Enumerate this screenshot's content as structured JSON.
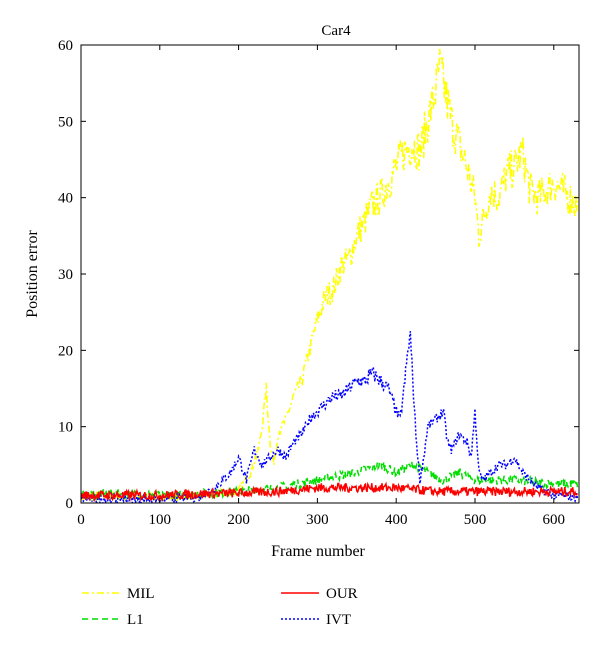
{
  "chart_data": {
    "type": "line",
    "title": "Car4",
    "xlabel": "Frame number",
    "ylabel": "Position error",
    "xlim": [
      0,
      632
    ],
    "ylim": [
      0,
      60
    ],
    "xticks": [
      0,
      100,
      200,
      300,
      400,
      500,
      600
    ],
    "yticks": [
      0,
      10,
      20,
      30,
      40,
      50,
      60
    ],
    "legend_position": "below plot, two columns",
    "grid": false,
    "series": [
      {
        "name": "MIL",
        "color": "#ffff00",
        "style": "dashdot",
        "points": [
          [
            0,
            0.8
          ],
          [
            50,
            0.9
          ],
          [
            100,
            0.8
          ],
          [
            150,
            0.9
          ],
          [
            200,
            1.5
          ],
          [
            215,
            4
          ],
          [
            225,
            7
          ],
          [
            230,
            10
          ],
          [
            235,
            15
          ],
          [
            240,
            8
          ],
          [
            245,
            5
          ],
          [
            250,
            9
          ],
          [
            260,
            11
          ],
          [
            270,
            14
          ],
          [
            280,
            16
          ],
          [
            290,
            20
          ],
          [
            300,
            24
          ],
          [
            310,
            27
          ],
          [
            320,
            28
          ],
          [
            330,
            31
          ],
          [
            340,
            32
          ],
          [
            350,
            35
          ],
          [
            360,
            37
          ],
          [
            370,
            39
          ],
          [
            380,
            40
          ],
          [
            390,
            42
          ],
          [
            400,
            44
          ],
          [
            410,
            46
          ],
          [
            420,
            47
          ],
          [
            430,
            46
          ],
          [
            440,
            50
          ],
          [
            450,
            54
          ],
          [
            455,
            57
          ],
          [
            460,
            55
          ],
          [
            470,
            50
          ],
          [
            480,
            47
          ],
          [
            490,
            44
          ],
          [
            500,
            40
          ],
          [
            505,
            35
          ],
          [
            510,
            37
          ],
          [
            520,
            41
          ],
          [
            530,
            40
          ],
          [
            540,
            43
          ],
          [
            550,
            44
          ],
          [
            560,
            46
          ],
          [
            570,
            41
          ],
          [
            580,
            40
          ],
          [
            590,
            41
          ],
          [
            600,
            42
          ],
          [
            610,
            41
          ],
          [
            620,
            40
          ],
          [
            630,
            39
          ]
        ]
      },
      {
        "name": "L1",
        "color": "#00dd00",
        "style": "dashed",
        "points": [
          [
            0,
            1
          ],
          [
            50,
            1.2
          ],
          [
            100,
            1
          ],
          [
            150,
            1.2
          ],
          [
            200,
            1.5
          ],
          [
            250,
            2
          ],
          [
            300,
            3
          ],
          [
            350,
            4
          ],
          [
            380,
            5
          ],
          [
            400,
            4
          ],
          [
            420,
            5
          ],
          [
            440,
            4
          ],
          [
            460,
            3
          ],
          [
            480,
            4
          ],
          [
            500,
            3
          ],
          [
            550,
            3
          ],
          [
            600,
            2.5
          ],
          [
            630,
            2.5
          ]
        ]
      },
      {
        "name": "OUR",
        "color": "#ff0000",
        "style": "solid",
        "points": [
          [
            0,
            1
          ],
          [
            50,
            1
          ],
          [
            100,
            1
          ],
          [
            150,
            1.2
          ],
          [
            200,
            1.3
          ],
          [
            250,
            1.5
          ],
          [
            300,
            2
          ],
          [
            350,
            2
          ],
          [
            400,
            2
          ],
          [
            450,
            1.5
          ],
          [
            500,
            1.5
          ],
          [
            550,
            1.5
          ],
          [
            600,
            1.5
          ],
          [
            630,
            1.5
          ]
        ]
      },
      {
        "name": "IVT",
        "color": "#0000ff",
        "style": "dotted",
        "points": [
          [
            0,
            0.5
          ],
          [
            50,
            0.6
          ],
          [
            100,
            0.5
          ],
          [
            150,
            0.8
          ],
          [
            170,
            2
          ],
          [
            190,
            4
          ],
          [
            200,
            6
          ],
          [
            210,
            3
          ],
          [
            220,
            7
          ],
          [
            230,
            5
          ],
          [
            240,
            6
          ],
          [
            250,
            7
          ],
          [
            260,
            6
          ],
          [
            270,
            8
          ],
          [
            280,
            9
          ],
          [
            290,
            11
          ],
          [
            300,
            12
          ],
          [
            310,
            13
          ],
          [
            320,
            14
          ],
          [
            330,
            14
          ],
          [
            340,
            15
          ],
          [
            350,
            16
          ],
          [
            360,
            16
          ],
          [
            370,
            17
          ],
          [
            380,
            16
          ],
          [
            390,
            15
          ],
          [
            400,
            12
          ],
          [
            405,
            11
          ],
          [
            410,
            15
          ],
          [
            415,
            20
          ],
          [
            418,
            22
          ],
          [
            420,
            18
          ],
          [
            425,
            9
          ],
          [
            430,
            3
          ],
          [
            435,
            6
          ],
          [
            440,
            10
          ],
          [
            450,
            11
          ],
          [
            460,
            12
          ],
          [
            465,
            8
          ],
          [
            470,
            7
          ],
          [
            480,
            9
          ],
          [
            490,
            8
          ],
          [
            495,
            6
          ],
          [
            500,
            12
          ],
          [
            505,
            4
          ],
          [
            510,
            3
          ],
          [
            520,
            4
          ],
          [
            530,
            5
          ],
          [
            540,
            5
          ],
          [
            550,
            6
          ],
          [
            560,
            4
          ],
          [
            570,
            3
          ],
          [
            580,
            2
          ],
          [
            590,
            1.5
          ],
          [
            600,
            1
          ],
          [
            630,
            0.8
          ]
        ]
      }
    ]
  }
}
